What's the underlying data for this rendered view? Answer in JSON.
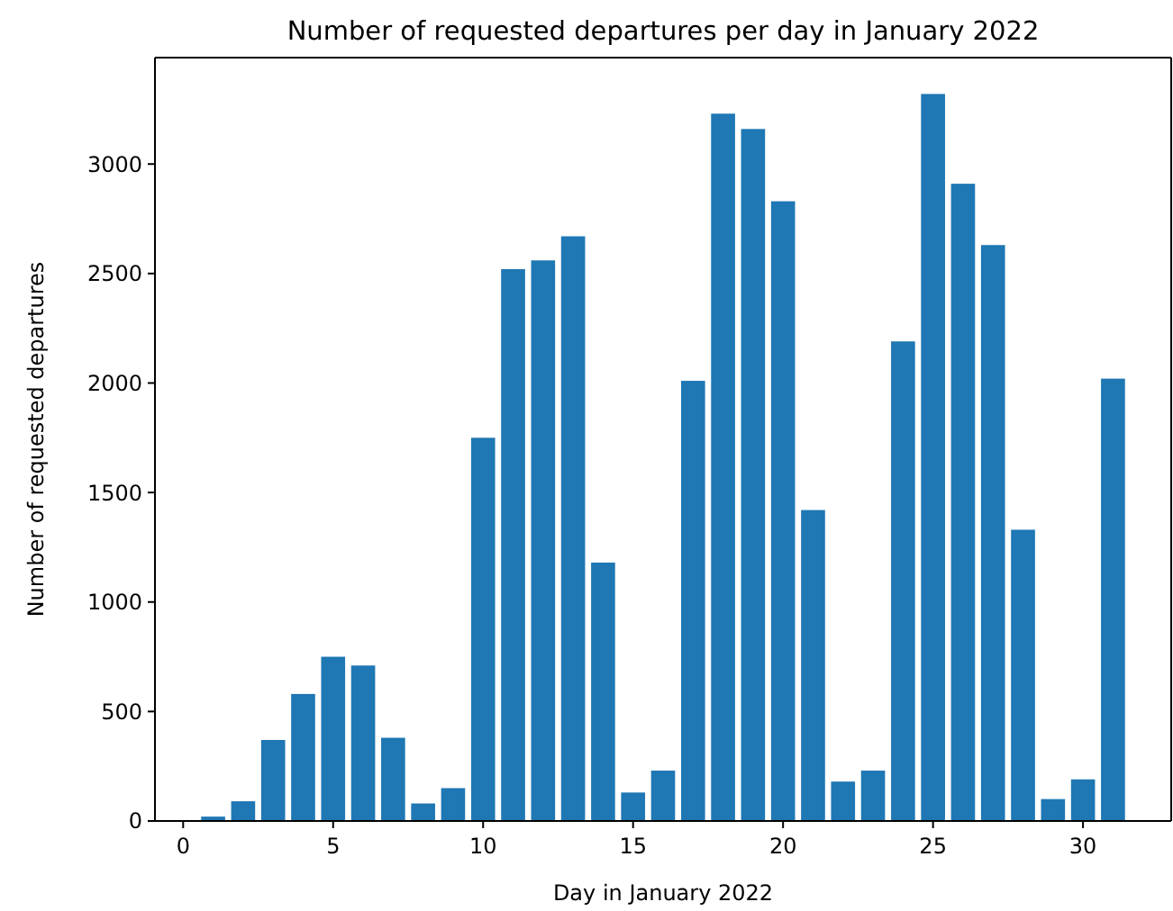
{
  "chart_data": {
    "type": "bar",
    "title": "Number of requested departures per day in January 2022",
    "xlabel": "Day in January 2022",
    "ylabel": "Number of requested departures",
    "x": [
      1,
      2,
      3,
      4,
      5,
      6,
      7,
      8,
      9,
      10,
      11,
      12,
      13,
      14,
      15,
      16,
      17,
      18,
      19,
      20,
      21,
      22,
      23,
      24,
      25,
      26,
      27,
      28,
      29,
      30,
      31
    ],
    "values": [
      20,
      90,
      370,
      580,
      750,
      710,
      380,
      80,
      150,
      1750,
      2520,
      2560,
      2670,
      1180,
      130,
      230,
      2010,
      3230,
      3160,
      2830,
      1420,
      180,
      230,
      2190,
      3320,
      2910,
      2630,
      1330,
      100,
      190,
      2020
    ],
    "color": "#1f77b4",
    "xlim": [
      -0.94,
      32.94
    ],
    "xticks": [
      0,
      5,
      10,
      15,
      20,
      25,
      30
    ],
    "ylim": [
      0,
      3486
    ],
    "yticks": [
      0,
      500,
      1000,
      1500,
      2000,
      2500,
      3000
    ]
  }
}
